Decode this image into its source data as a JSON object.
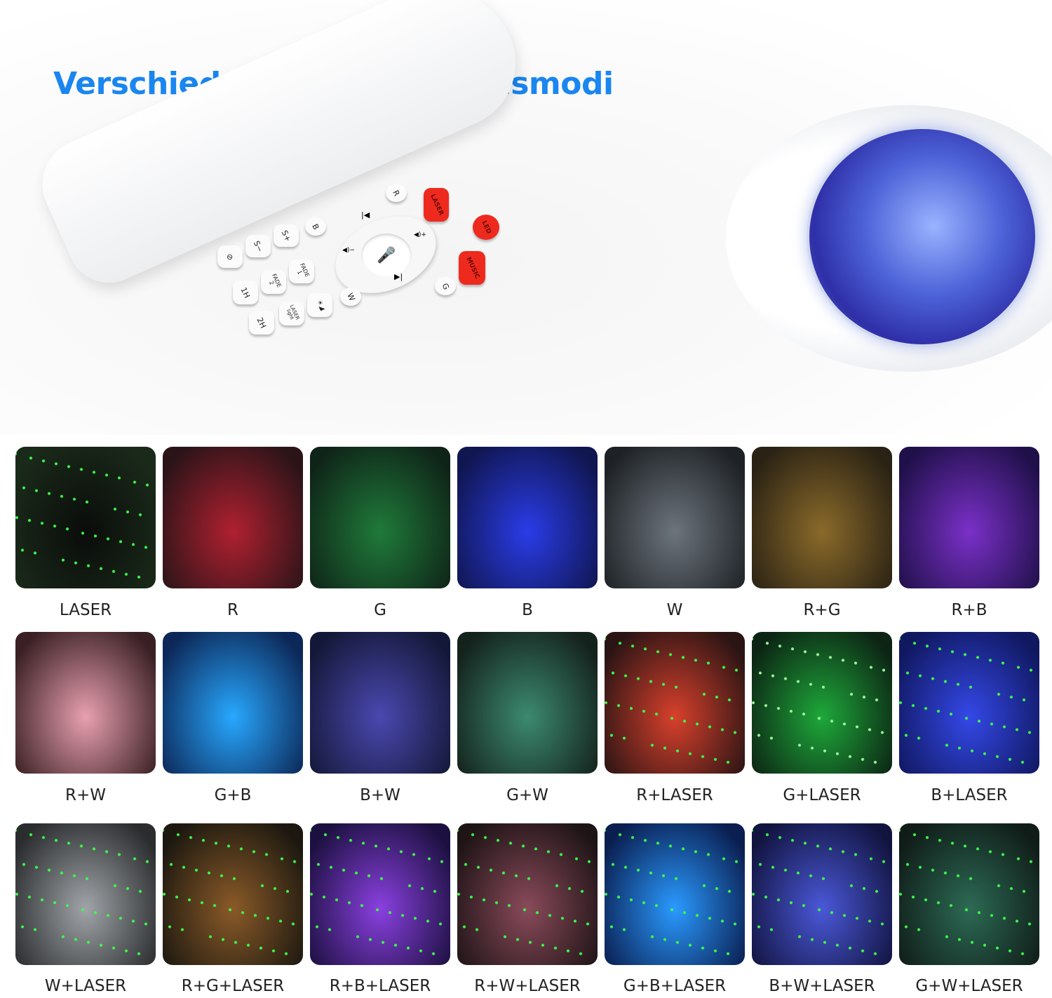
{
  "title": "Verschiedene Kombinationsmodi",
  "remote": {
    "buttons": {
      "r": "R",
      "laser": "LASER",
      "led": "LED",
      "music": "MUSIC",
      "b": "B",
      "s_plus": "S+",
      "s_minus": "S−",
      "timer": "⊘",
      "fade1": "FADE\n1",
      "fade2": "FADE\n2",
      "h1": "1H",
      "h2": "2H",
      "laser_light": "LASER\nlight",
      "brightness": "☀◢",
      "w": "W",
      "g": "G",
      "prev": "|◀",
      "next": "▶|",
      "vol_up": "◀)+",
      "vol_down": "◀)−",
      "mic": "🎤"
    }
  },
  "modes": [
    {
      "label": "LASER",
      "colors": [
        "#0a0c0a",
        "#1a2a1a"
      ],
      "dots": "#3cff4a"
    },
    {
      "label": "R",
      "colors": [
        "#b02030",
        "#2a1418"
      ],
      "dots": ""
    },
    {
      "label": "G",
      "colors": [
        "#1f7a3a",
        "#0f2418"
      ],
      "dots": ""
    },
    {
      "label": "B",
      "colors": [
        "#2a3ce8",
        "#101650"
      ],
      "dots": ""
    },
    {
      "label": "W",
      "colors": [
        "#6c747c",
        "#1e2226"
      ],
      "dots": ""
    },
    {
      "label": "R+G",
      "colors": [
        "#8a6a2a",
        "#2a2214"
      ],
      "dots": ""
    },
    {
      "label": "R+B",
      "colors": [
        "#7a30c8",
        "#20104a"
      ],
      "dots": ""
    },
    {
      "label": "R+W",
      "colors": [
        "#e8a0b0",
        "#3a2024"
      ],
      "dots": ""
    },
    {
      "label": "G+B",
      "colors": [
        "#28a8ff",
        "#0c2858"
      ],
      "dots": ""
    },
    {
      "label": "B+W",
      "colors": [
        "#4a48b0",
        "#141838"
      ],
      "dots": ""
    },
    {
      "label": "G+W",
      "colors": [
        "#3c8a70",
        "#14221c"
      ],
      "dots": ""
    },
    {
      "label": "R+LASER",
      "colors": [
        "#d8402c",
        "#2a1414"
      ],
      "dots": "#3cff4a"
    },
    {
      "label": "G+LASER",
      "colors": [
        "#1ea83a",
        "#0c2414"
      ],
      "dots": "#9aff9a"
    },
    {
      "label": "B+LASER",
      "colors": [
        "#3448e8",
        "#101860"
      ],
      "dots": "#3cff4a"
    },
    {
      "label": "W+LASER",
      "colors": [
        "#a0a4a8",
        "#2a2c2e"
      ],
      "dots": "#3cff4a"
    },
    {
      "label": "R+G+LASER",
      "colors": [
        "#8a5a28",
        "#1c1810"
      ],
      "dots": "#3cff4a"
    },
    {
      "label": "R+B+LASER",
      "colors": [
        "#8a40e0",
        "#1c1040"
      ],
      "dots": "#3cff4a"
    },
    {
      "label": "R+W+LASER",
      "colors": [
        "#8a4a5a",
        "#1e1416"
      ],
      "dots": "#3cff4a"
    },
    {
      "label": "G+B+LASER",
      "colors": [
        "#2a9aff",
        "#0a1e50"
      ],
      "dots": "#3cff4a"
    },
    {
      "label": "B+W+LASER",
      "colors": [
        "#4a58d8",
        "#121440"
      ],
      "dots": "#3cff4a"
    },
    {
      "label": "G+W+LASER",
      "colors": [
        "#2c6a54",
        "#101c18"
      ],
      "dots": "#3cff4a"
    }
  ]
}
